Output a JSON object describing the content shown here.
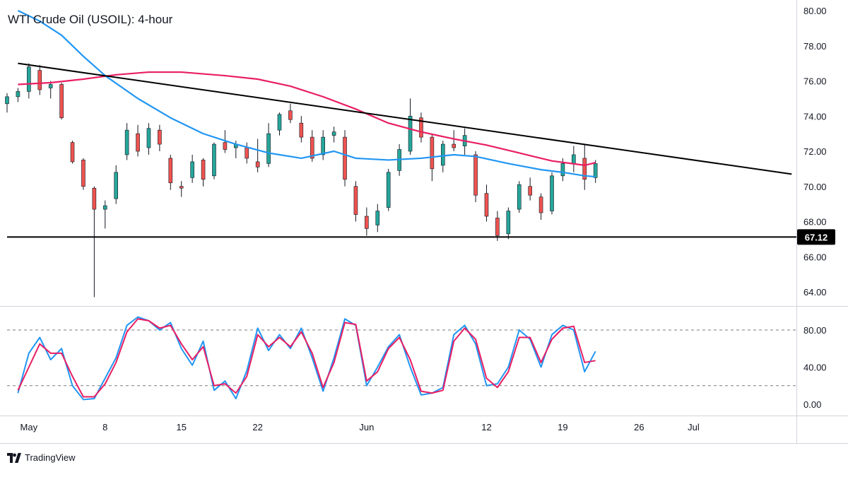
{
  "chart_data": [
    {
      "type": "candlestick",
      "title": "WTI Crude Oil (USOIL): 4-hour",
      "ylim": [
        63.0,
        80.5
      ],
      "y_ticks": [
        "80.00",
        "78.00",
        "76.00",
        "74.00",
        "72.00",
        "70.00",
        "68.00",
        "66.00",
        "64.00"
      ],
      "x_tick_labels": [
        "May",
        "8",
        "15",
        "22",
        "Jun",
        "12",
        "19",
        "26",
        "Jul"
      ],
      "support_level": {
        "value": 67.12,
        "label": "67.12"
      },
      "trendline": {
        "start": {
          "date": "2023-04-30",
          "value": 77.0
        },
        "end": {
          "date": "2023-07-10",
          "value": 70.7
        }
      },
      "moving_averages": [
        {
          "color": "#e91e63",
          "points": [
            [
              "2023-04-30",
              75.8
            ],
            [
              "2023-05-03",
              75.9
            ],
            [
              "2023-05-06",
              76.1
            ],
            [
              "2023-05-09",
              76.35
            ],
            [
              "2023-05-12",
              76.5
            ],
            [
              "2023-05-15",
              76.5
            ],
            [
              "2023-05-19",
              76.3
            ],
            [
              "2023-05-22",
              76.1
            ],
            [
              "2023-05-25",
              75.7
            ],
            [
              "2023-05-28",
              75.1
            ],
            [
              "2023-05-31",
              74.4
            ],
            [
              "2023-06-03",
              73.6
            ],
            [
              "2023-06-06",
              73.1
            ],
            [
              "2023-06-09",
              72.7
            ],
            [
              "2023-06-12",
              72.35
            ],
            [
              "2023-06-15",
              71.9
            ],
            [
              "2023-06-18",
              71.45
            ],
            [
              "2023-06-21",
              71.2
            ],
            [
              "2023-06-22",
              71.35
            ]
          ]
        },
        {
          "color": "#2196f3",
          "points": [
            [
              "2023-04-30",
              80.0
            ],
            [
              "2023-05-02",
              79.4
            ],
            [
              "2023-05-04",
              78.6
            ],
            [
              "2023-05-06",
              77.4
            ],
            [
              "2023-05-08",
              76.3
            ],
            [
              "2023-05-11",
              75.0
            ],
            [
              "2023-05-14",
              73.9
            ],
            [
              "2023-05-17",
              73.0
            ],
            [
              "2023-05-20",
              72.4
            ],
            [
              "2023-05-23",
              71.9
            ],
            [
              "2023-05-26",
              71.6
            ],
            [
              "2023-05-29",
              72.0
            ],
            [
              "2023-05-31",
              71.6
            ],
            [
              "2023-06-03",
              71.5
            ],
            [
              "2023-06-06",
              71.6
            ],
            [
              "2023-06-09",
              71.8
            ],
            [
              "2023-06-11",
              71.7
            ],
            [
              "2023-06-14",
              71.3
            ],
            [
              "2023-06-17",
              70.95
            ],
            [
              "2023-06-19",
              70.8
            ],
            [
              "2023-06-21",
              70.6
            ],
            [
              "2023-06-22",
              70.55
            ]
          ]
        }
      ],
      "colors": {
        "up": "#26a69a",
        "down": "#ef5350"
      },
      "candles": [
        [
          "2023-04-29",
          74.7,
          75.3,
          74.2,
          75.1
        ],
        [
          "2023-04-30",
          75.1,
          75.6,
          74.8,
          75.4
        ],
        [
          "2023-05-01",
          75.4,
          77.0,
          75.0,
          76.8
        ],
        [
          "2023-05-02",
          76.6,
          76.9,
          75.2,
          75.5
        ],
        [
          "2023-05-03",
          75.6,
          76.0,
          75.0,
          75.8
        ],
        [
          "2023-05-04",
          75.8,
          75.9,
          73.8,
          73.9
        ],
        [
          "2023-05-05",
          72.5,
          72.6,
          71.3,
          71.4
        ],
        [
          "2023-05-06",
          71.5,
          71.6,
          69.8,
          70.0
        ],
        [
          "2023-05-07",
          69.9,
          70.0,
          63.7,
          68.7
        ],
        [
          "2023-05-08",
          68.7,
          69.2,
          67.6,
          68.9
        ],
        [
          "2023-05-09",
          69.3,
          71.2,
          69.0,
          70.8
        ],
        [
          "2023-05-10",
          71.8,
          73.6,
          71.5,
          73.2
        ],
        [
          "2023-05-11",
          73.0,
          73.5,
          71.7,
          72.0
        ],
        [
          "2023-05-12",
          72.2,
          73.6,
          71.8,
          73.3
        ],
        [
          "2023-05-13",
          73.2,
          73.5,
          72.0,
          72.4
        ],
        [
          "2023-05-14",
          71.6,
          71.8,
          69.8,
          70.2
        ],
        [
          "2023-05-15",
          70.0,
          70.3,
          69.4,
          69.9
        ],
        [
          "2023-05-16",
          70.5,
          71.8,
          70.2,
          71.4
        ],
        [
          "2023-05-17",
          71.5,
          71.6,
          70.0,
          70.4
        ],
        [
          "2023-05-18",
          70.6,
          72.5,
          70.4,
          72.4
        ],
        [
          "2023-05-19",
          72.5,
          73.2,
          71.9,
          72.1
        ],
        [
          "2023-05-20",
          72.2,
          72.6,
          71.6,
          72.4
        ],
        [
          "2023-05-21",
          72.2,
          72.5,
          71.3,
          71.6
        ],
        [
          "2023-05-22",
          71.4,
          72.7,
          70.8,
          71.1
        ],
        [
          "2023-05-23",
          71.3,
          73.6,
          71.1,
          73.0
        ],
        [
          "2023-05-24",
          73.2,
          74.2,
          72.9,
          74.1
        ],
        [
          "2023-05-25",
          74.3,
          74.7,
          73.6,
          73.8
        ],
        [
          "2023-05-26",
          73.6,
          74.0,
          72.5,
          72.8
        ],
        [
          "2023-05-27",
          72.8,
          73.2,
          71.4,
          71.6
        ],
        [
          "2023-05-28",
          71.8,
          73.2,
          71.5,
          72.8
        ],
        [
          "2023-05-29",
          72.9,
          73.4,
          72.5,
          73.1
        ],
        [
          "2023-05-30",
          72.8,
          73.2,
          70.0,
          70.4
        ],
        [
          "2023-05-31",
          70.0,
          70.3,
          68.0,
          68.4
        ],
        [
          "2023-06-01",
          68.3,
          68.8,
          67.2,
          67.6
        ],
        [
          "2023-06-02",
          67.8,
          69.0,
          67.4,
          68.6
        ],
        [
          "2023-06-03",
          68.8,
          71.0,
          68.6,
          70.8
        ],
        [
          "2023-06-04",
          70.9,
          72.4,
          70.6,
          72.1
        ],
        [
          "2023-06-05",
          72.0,
          75.0,
          71.8,
          74.0
        ],
        [
          "2023-06-06",
          73.9,
          74.2,
          72.5,
          72.8
        ],
        [
          "2023-06-07",
          72.8,
          73.0,
          70.3,
          71.0
        ],
        [
          "2023-06-08",
          71.2,
          72.6,
          70.8,
          72.4
        ],
        [
          "2023-06-09",
          72.4,
          73.2,
          72.0,
          72.2
        ],
        [
          "2023-06-10",
          72.3,
          73.3,
          71.8,
          72.9
        ],
        [
          "2023-06-11",
          71.8,
          72.0,
          69.1,
          69.5
        ],
        [
          "2023-06-12",
          69.6,
          70.1,
          68.0,
          68.3
        ],
        [
          "2023-06-13",
          68.2,
          68.6,
          66.9,
          67.2
        ],
        [
          "2023-06-14",
          67.3,
          68.8,
          67.0,
          68.6
        ],
        [
          "2023-06-15",
          68.7,
          70.3,
          68.5,
          70.1
        ],
        [
          "2023-06-16",
          70.0,
          70.5,
          69.2,
          69.5
        ],
        [
          "2023-06-17",
          69.4,
          69.6,
          68.1,
          68.5
        ],
        [
          "2023-06-18",
          68.6,
          70.8,
          68.4,
          70.6
        ],
        [
          "2023-06-19",
          70.6,
          71.6,
          70.3,
          71.3
        ],
        [
          "2023-06-20",
          71.3,
          72.3,
          70.8,
          71.8
        ],
        [
          "2023-06-21",
          71.6,
          72.4,
          69.8,
          70.4
        ],
        [
          "2023-06-22",
          70.5,
          71.5,
          70.2,
          71.3
        ]
      ]
    },
    {
      "type": "line",
      "y_ticks": [
        "80.00",
        "40.00",
        "0.00"
      ],
      "ylim": [
        -6,
        100
      ],
      "reference_lines": [
        80,
        20
      ],
      "series": [
        {
          "color": "#2196f3",
          "points": [
            [
              "2023-04-30",
              12
            ],
            [
              "2023-05-01",
              55
            ],
            [
              "2023-05-02",
              72
            ],
            [
              "2023-05-03",
              48
            ],
            [
              "2023-05-04",
              60
            ],
            [
              "2023-05-05",
              20
            ],
            [
              "2023-05-06",
              5
            ],
            [
              "2023-05-07",
              6
            ],
            [
              "2023-05-08",
              28
            ],
            [
              "2023-05-09",
              50
            ],
            [
              "2023-05-10",
              85
            ],
            [
              "2023-05-11",
              94
            ],
            [
              "2023-05-12",
              90
            ],
            [
              "2023-05-13",
              80
            ],
            [
              "2023-05-14",
              88
            ],
            [
              "2023-05-15",
              60
            ],
            [
              "2023-05-16",
              42
            ],
            [
              "2023-05-17",
              68
            ],
            [
              "2023-05-18",
              15
            ],
            [
              "2023-05-19",
              25
            ],
            [
              "2023-05-20",
              6
            ],
            [
              "2023-05-21",
              36
            ],
            [
              "2023-05-22",
              82
            ],
            [
              "2023-05-23",
              58
            ],
            [
              "2023-05-24",
              75
            ],
            [
              "2023-05-25",
              60
            ],
            [
              "2023-05-26",
              82
            ],
            [
              "2023-05-27",
              50
            ],
            [
              "2023-05-28",
              14
            ],
            [
              "2023-05-29",
              50
            ],
            [
              "2023-05-30",
              92
            ],
            [
              "2023-05-31",
              85
            ],
            [
              "2023-06-01",
              20
            ],
            [
              "2023-06-02",
              40
            ],
            [
              "2023-06-03",
              62
            ],
            [
              "2023-06-04",
              75
            ],
            [
              "2023-06-05",
              40
            ],
            [
              "2023-06-06",
              10
            ],
            [
              "2023-06-07",
              12
            ],
            [
              "2023-06-08",
              18
            ],
            [
              "2023-06-09",
              75
            ],
            [
              "2023-06-10",
              85
            ],
            [
              "2023-06-11",
              65
            ],
            [
              "2023-06-12",
              20
            ],
            [
              "2023-06-13",
              22
            ],
            [
              "2023-06-14",
              40
            ],
            [
              "2023-06-15",
              80
            ],
            [
              "2023-06-16",
              70
            ],
            [
              "2023-06-17",
              40
            ],
            [
              "2023-06-18",
              75
            ],
            [
              "2023-06-19",
              85
            ],
            [
              "2023-06-20",
              80
            ],
            [
              "2023-06-21",
              35
            ],
            [
              "2023-06-22",
              57
            ]
          ]
        },
        {
          "color": "#e91e63",
          "points": [
            [
              "2023-04-30",
              15
            ],
            [
              "2023-05-01",
              40
            ],
            [
              "2023-05-02",
              65
            ],
            [
              "2023-05-03",
              55
            ],
            [
              "2023-05-04",
              55
            ],
            [
              "2023-05-05",
              30
            ],
            [
              "2023-05-06",
              8
            ],
            [
              "2023-05-07",
              8
            ],
            [
              "2023-05-08",
              22
            ],
            [
              "2023-05-09",
              45
            ],
            [
              "2023-05-10",
              78
            ],
            [
              "2023-05-11",
              92
            ],
            [
              "2023-05-12",
              90
            ],
            [
              "2023-05-13",
              82
            ],
            [
              "2023-05-14",
              85
            ],
            [
              "2023-05-15",
              65
            ],
            [
              "2023-05-16",
              48
            ],
            [
              "2023-05-17",
              62
            ],
            [
              "2023-05-18",
              20
            ],
            [
              "2023-05-19",
              22
            ],
            [
              "2023-05-20",
              12
            ],
            [
              "2023-05-21",
              30
            ],
            [
              "2023-05-22",
              75
            ],
            [
              "2023-05-23",
              62
            ],
            [
              "2023-05-24",
              72
            ],
            [
              "2023-05-25",
              62
            ],
            [
              "2023-05-26",
              78
            ],
            [
              "2023-05-27",
              55
            ],
            [
              "2023-05-28",
              18
            ],
            [
              "2023-05-29",
              45
            ],
            [
              "2023-05-30",
              88
            ],
            [
              "2023-05-31",
              86
            ],
            [
              "2023-06-01",
              25
            ],
            [
              "2023-06-02",
              35
            ],
            [
              "2023-06-03",
              60
            ],
            [
              "2023-06-04",
              72
            ],
            [
              "2023-06-05",
              48
            ],
            [
              "2023-06-06",
              14
            ],
            [
              "2023-06-07",
              12
            ],
            [
              "2023-06-08",
              15
            ],
            [
              "2023-06-09",
              68
            ],
            [
              "2023-06-10",
              82
            ],
            [
              "2023-06-11",
              70
            ],
            [
              "2023-06-12",
              28
            ],
            [
              "2023-06-13",
              18
            ],
            [
              "2023-06-14",
              35
            ],
            [
              "2023-06-15",
              72
            ],
            [
              "2023-06-16",
              72
            ],
            [
              "2023-06-17",
              45
            ],
            [
              "2023-06-18",
              70
            ],
            [
              "2023-06-19",
              82
            ],
            [
              "2023-06-20",
              84
            ],
            [
              "2023-06-21",
              45
            ],
            [
              "2023-06-22",
              47
            ]
          ]
        }
      ]
    }
  ],
  "brand": {
    "name": "TradingView",
    "logo_icon": "tradingview-logo-icon"
  }
}
